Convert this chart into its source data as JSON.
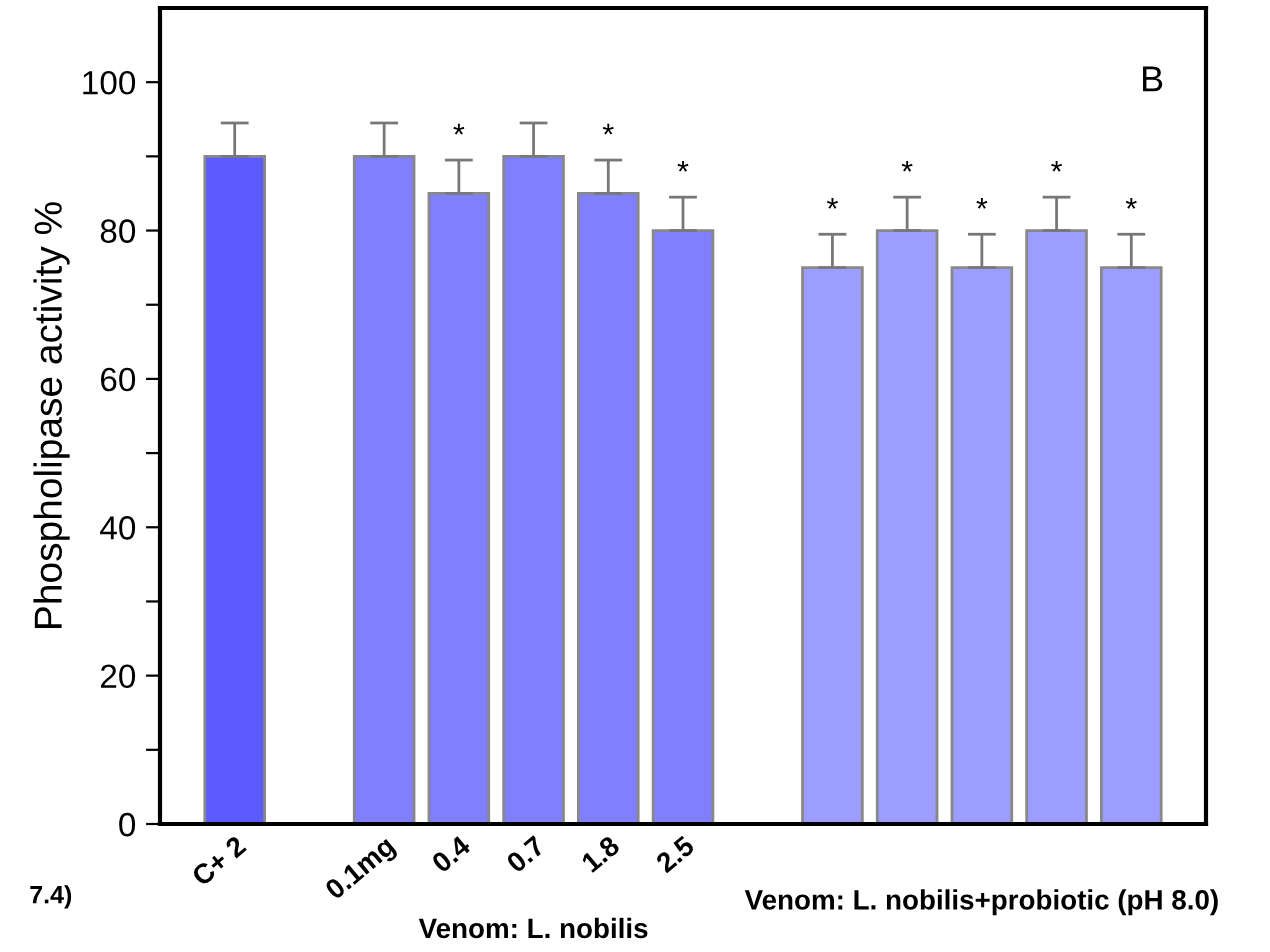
{
  "chart_data": {
    "type": "bar",
    "ylabel": "Phospholipase activity %",
    "categories": [
      "C+ 2",
      null,
      "0.1mg",
      "0.4",
      "0.7",
      "1.8",
      "2.5",
      null,
      null,
      null,
      null,
      null,
      null
    ],
    "values": [
      90,
      null,
      90,
      85,
      90,
      85,
      80,
      null,
      75,
      80,
      75,
      80,
      75
    ],
    "errors": [
      4.5,
      null,
      4.5,
      4.5,
      4.5,
      4.5,
      4.5,
      null,
      4.5,
      4.5,
      4.5,
      4.5,
      4.5
    ],
    "value_labels": [
      null,
      null,
      null,
      "*",
      null,
      "*",
      "*",
      null,
      "*",
      "*",
      "*",
      "*",
      "*"
    ],
    "colors": [
      "#5b5bff",
      null,
      "#7f7fff",
      "#7f7fff",
      "#7f7fff",
      "#7f7fff",
      "#7f7fff",
      null,
      "#9d9dff",
      "#9d9dff",
      "#9d9dff",
      "#9d9dff",
      "#9d9dff"
    ],
    "ylim": [
      0,
      110
    ],
    "yticks": [
      0,
      {
        "value": 10,
        "label": null
      },
      20,
      {
        "value": 30,
        "label": null
      },
      40,
      {
        "value": 50,
        "label": null
      },
      60,
      {
        "value": 70,
        "label": null
      },
      80,
      {
        "value": 90,
        "label": null
      },
      100
    ],
    "grid": false,
    "annotations": [
      "B",
      "Venom: L. nobilis",
      "Venom: L. nobilis+probiotic (pH 8.0)",
      "7.4)"
    ]
  }
}
